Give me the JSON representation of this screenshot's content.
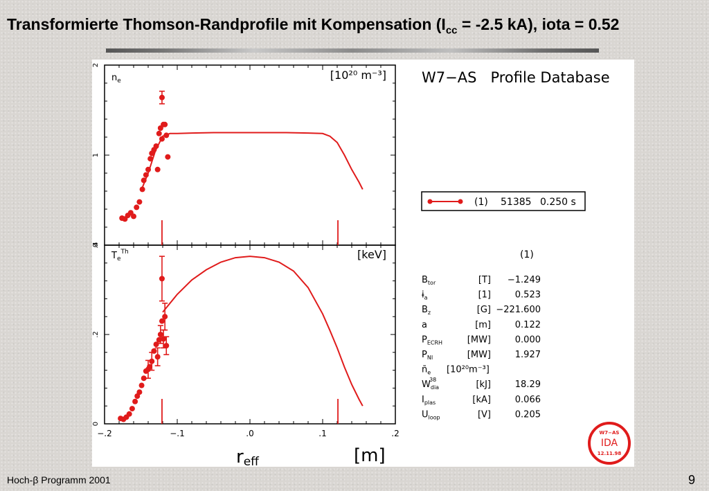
{
  "slide": {
    "title_main": "Transformierte Thomson-Randprofile mit Kompensation (I",
    "title_sub": "cc",
    "title_rest": " = -2.5 kA), iota = 0.52",
    "footer_left": "Hoch-β Programm 2001",
    "page_number": "9"
  },
  "figure": {
    "database_title": "W7−AS   Profile Database",
    "legend": {
      "index": "(1)",
      "shot": "51385",
      "time": "0.250 s",
      "color": "#e01b1b"
    },
    "params_header": "(1)",
    "params": [
      {
        "name": "B",
        "sub": "tor",
        "unit": "[T]",
        "value": "−1.249"
      },
      {
        "name": "ɨ",
        "sub": "a",
        "unit": "[1]",
        "value": "0.523"
      },
      {
        "name": "B",
        "sub": "z",
        "unit": "[G]",
        "value": "−221.600"
      },
      {
        "name": "a",
        "sub": "",
        "unit": "[m]",
        "value": "0.122"
      },
      {
        "name": "P",
        "sub": "ECRH",
        "unit": "[MW]",
        "value": "0.000"
      },
      {
        "name": "P",
        "sub": "NI",
        "unit": "[MW]",
        "value": "1.927"
      },
      {
        "name": "n̄",
        "sub": "e",
        "unit": "[10²⁰m⁻³]",
        "value": ""
      },
      {
        "name": "W",
        "sub": "dia",
        "sup": "38",
        "unit": "[kJ]",
        "value": "18.29"
      },
      {
        "name": "I",
        "sub": "plas",
        "unit": "[kA]",
        "value": "0.066"
      },
      {
        "name": "U",
        "sub": "loop",
        "unit": "[V]",
        "value": "0.205"
      }
    ],
    "stamp": {
      "top": "W7−AS",
      "middle": "IDA",
      "bottom": "12.11.98",
      "color": "#e01b1b"
    }
  },
  "chart_data": [
    {
      "type": "scatter",
      "panel": "top",
      "label": "n",
      "label_sub": "e",
      "unit": "[10²⁰ m⁻³]",
      "xlim": [
        -0.2,
        0.2
      ],
      "ylim": [
        0,
        2
      ],
      "yticks": [
        "0",
        "1",
        "2"
      ],
      "color": "#e01b1b",
      "markers_x": [
        -0.121,
        0.121
      ],
      "points": [
        {
          "x": -0.176,
          "y": 0.3
        },
        {
          "x": -0.172,
          "y": 0.29
        },
        {
          "x": -0.168,
          "y": 0.33
        },
        {
          "x": -0.164,
          "y": 0.36
        },
        {
          "x": -0.16,
          "y": 0.32
        },
        {
          "x": -0.156,
          "y": 0.42
        },
        {
          "x": -0.152,
          "y": 0.48
        },
        {
          "x": -0.148,
          "y": 0.62
        },
        {
          "x": -0.146,
          "y": 0.72
        },
        {
          "x": -0.143,
          "y": 0.78
        },
        {
          "x": -0.14,
          "y": 0.84
        },
        {
          "x": -0.137,
          "y": 0.96
        },
        {
          "x": -0.135,
          "y": 1.02
        },
        {
          "x": -0.132,
          "y": 1.06
        },
        {
          "x": -0.129,
          "y": 1.1
        },
        {
          "x": -0.127,
          "y": 0.84
        },
        {
          "x": -0.125,
          "y": 1.24
        },
        {
          "x": -0.123,
          "y": 1.3
        },
        {
          "x": -0.121,
          "y": 1.18
        },
        {
          "x": -0.119,
          "y": 1.34
        },
        {
          "x": -0.117,
          "y": 1.34
        },
        {
          "x": -0.115,
          "y": 1.22
        },
        {
          "x": -0.113,
          "y": 0.98
        },
        {
          "x": -0.121,
          "y": 1.64,
          "err": 0.07
        }
      ],
      "fit": {
        "x": [
          -0.15,
          -0.14,
          -0.13,
          -0.12,
          -0.11,
          -0.1,
          -0.08,
          -0.05,
          0.0,
          0.05,
          0.08,
          0.1,
          0.11,
          0.12,
          0.13,
          0.14,
          0.15,
          0.155
        ],
        "y": [
          0.6,
          0.8,
          1.05,
          1.21,
          1.24,
          1.24,
          1.245,
          1.25,
          1.25,
          1.25,
          1.245,
          1.24,
          1.21,
          1.14,
          1.0,
          0.84,
          0.7,
          0.62
        ]
      }
    },
    {
      "type": "scatter",
      "panel": "bottom",
      "label": "T",
      "label_sub": "e",
      "label_sup": "Th",
      "unit": "[keV]",
      "xlim": [
        -0.2,
        0.2
      ],
      "ylim": [
        0,
        0.4
      ],
      "xlabel": "r",
      "xlabel_sub": "eff",
      "xunit": "[m]",
      "xticks": [
        "−.2",
        "−.1",
        ".0",
        ".1",
        ".2"
      ],
      "yticks": [
        "0",
        ".2",
        ".4"
      ],
      "color": "#e01b1b",
      "markers_x": [
        -0.121,
        0.121
      ],
      "points": [
        {
          "x": -0.178,
          "y": 0.012
        },
        {
          "x": -0.174,
          "y": 0.01
        },
        {
          "x": -0.17,
          "y": 0.015
        },
        {
          "x": -0.166,
          "y": 0.022
        },
        {
          "x": -0.162,
          "y": 0.034
        },
        {
          "x": -0.158,
          "y": 0.05
        },
        {
          "x": -0.155,
          "y": 0.062
        },
        {
          "x": -0.152,
          "y": 0.071
        },
        {
          "x": -0.149,
          "y": 0.086
        },
        {
          "x": -0.146,
          "y": 0.102
        },
        {
          "x": -0.143,
          "y": 0.118
        },
        {
          "x": -0.14,
          "y": 0.122,
          "err": 0.02
        },
        {
          "x": -0.138,
          "y": 0.128
        },
        {
          "x": -0.135,
          "y": 0.14,
          "err": 0.02
        },
        {
          "x": -0.132,
          "y": 0.163
        },
        {
          "x": -0.129,
          "y": 0.178
        },
        {
          "x": -0.127,
          "y": 0.15,
          "err": 0.02
        },
        {
          "x": -0.125,
          "y": 0.188
        },
        {
          "x": -0.123,
          "y": 0.2,
          "err": 0.02
        },
        {
          "x": -0.121,
          "y": 0.23
        },
        {
          "x": -0.119,
          "y": 0.19,
          "err": 0.02
        },
        {
          "x": -0.117,
          "y": 0.24,
          "err": 0.03
        },
        {
          "x": -0.115,
          "y": 0.175,
          "err": 0.02
        },
        {
          "x": -0.121,
          "y": 0.325,
          "err": 0.05
        }
      ],
      "fit": {
        "x": [
          -0.12,
          -0.1,
          -0.08,
          -0.06,
          -0.04,
          -0.02,
          0.0,
          0.02,
          0.04,
          0.06,
          0.08,
          0.1,
          0.11,
          0.12,
          0.13,
          0.14,
          0.15,
          0.155
        ],
        "y": [
          0.25,
          0.29,
          0.322,
          0.345,
          0.362,
          0.372,
          0.375,
          0.372,
          0.362,
          0.342,
          0.305,
          0.246,
          0.209,
          0.17,
          0.127,
          0.088,
          0.055,
          0.04
        ]
      }
    }
  ]
}
